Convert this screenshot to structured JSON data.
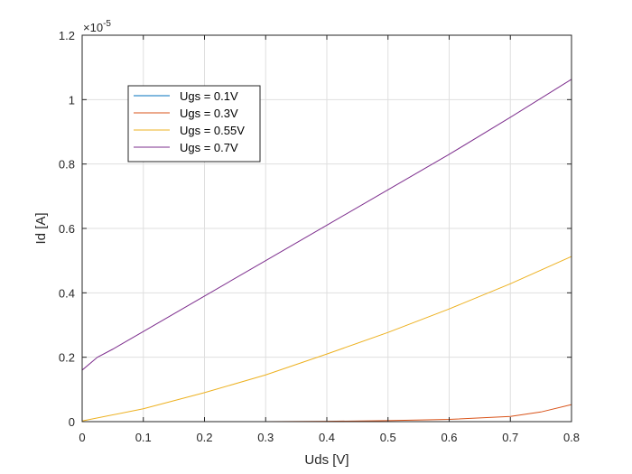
{
  "chart_data": {
    "type": "line",
    "title": "",
    "xlabel": "Uds [V]",
    "ylabel": "Id [A]",
    "y_exponent_label": "×10",
    "y_exponent_value": "-5",
    "xlim": [
      0,
      0.8
    ],
    "ylim": [
      0,
      1.2
    ],
    "x_ticks": [
      0,
      0.1,
      0.2,
      0.3,
      0.4,
      0.5,
      0.6,
      0.7,
      0.8
    ],
    "y_ticks": [
      0,
      0.2,
      0.4,
      0.6,
      0.8,
      1.0,
      1.2
    ],
    "x_tick_labels": [
      "0",
      "0.1",
      "0.2",
      "0.3",
      "0.4",
      "0.5",
      "0.6",
      "0.7",
      "0.8"
    ],
    "y_tick_labels": [
      "0",
      "0.2",
      "0.4",
      "0.6",
      "0.8",
      "1",
      "1.2"
    ],
    "grid": true,
    "legend_position": "upper-left",
    "series": [
      {
        "name": "Ugs = 0.1V",
        "color": "#0072BD",
        "x": [
          0,
          0.1,
          0.2,
          0.3,
          0.4,
          0.5,
          0.6,
          0.7,
          0.8
        ],
        "y": [
          0,
          0,
          0,
          0,
          0,
          0,
          0,
          0,
          0
        ]
      },
      {
        "name": "Ugs = 0.3V",
        "color": "#D95319",
        "x": [
          0,
          0.1,
          0.2,
          0.3,
          0.4,
          0.5,
          0.6,
          0.7,
          0.75,
          0.8
        ],
        "y": [
          0,
          0,
          0,
          0,
          0.001,
          0.003,
          0.007,
          0.016,
          0.03,
          0.053
        ]
      },
      {
        "name": "Ugs = 0.55V",
        "color": "#EDB120",
        "x": [
          0,
          0.1,
          0.2,
          0.3,
          0.4,
          0.5,
          0.6,
          0.7,
          0.8
        ],
        "y": [
          0.002,
          0.04,
          0.09,
          0.145,
          0.21,
          0.277,
          0.35,
          0.428,
          0.513
        ]
      },
      {
        "name": "Ugs = 0.7V",
        "color": "#7E2F8E",
        "x": [
          0,
          0.025,
          0.05,
          0.1,
          0.2,
          0.3,
          0.4,
          0.5,
          0.6,
          0.7,
          0.8
        ],
        "y": [
          0.16,
          0.2,
          0.225,
          0.28,
          0.39,
          0.5,
          0.61,
          0.72,
          0.83,
          0.945,
          1.063
        ]
      }
    ]
  }
}
